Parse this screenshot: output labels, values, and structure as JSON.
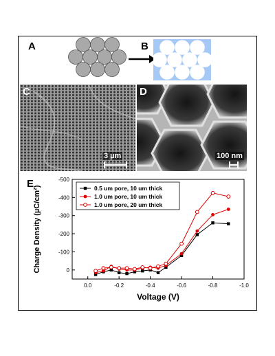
{
  "panels": {
    "a": {
      "letter": "A"
    },
    "b": {
      "letter": "B"
    },
    "c": {
      "letter": "C",
      "scale_bar": "3 µm"
    },
    "d": {
      "letter": "D",
      "scale_bar": "100 nm"
    },
    "e": {
      "letter": "E"
    }
  },
  "colors": {
    "sphere_fill": "#a9a9a9",
    "inverse_fill": "#a6c8f5",
    "series_black": "#000000",
    "series_red": "#e00000"
  },
  "chart_data": {
    "type": "line",
    "xlabel": "Voltage (V)",
    "ylabel": "Charge Density (µC/cm²)",
    "xlim": [
      0.1,
      -1.0
    ],
    "ylim": [
      50,
      -500
    ],
    "xticks": [
      "0.0",
      "-0.2",
      "-0.4",
      "-0.6",
      "-0.8",
      "-1.0"
    ],
    "yticks": [
      "-500",
      "-400",
      "-300",
      "-200",
      "-100",
      "0"
    ],
    "legend_position": "top-left",
    "series": [
      {
        "name": "0.5 um pore, 10 um thick",
        "marker": "filled-square",
        "color": "#000000",
        "x": [
          -0.05,
          -0.1,
          -0.15,
          -0.2,
          -0.25,
          -0.3,
          -0.35,
          -0.4,
          -0.45,
          -0.5,
          -0.6,
          -0.7,
          -0.8,
          -0.9
        ],
        "y": [
          25,
          10,
          0,
          15,
          20,
          10,
          5,
          0,
          15,
          -15,
          -80,
          -195,
          -260,
          -255
        ]
      },
      {
        "name": "1.0 um pore, 10 um thick",
        "marker": "filled-circle",
        "color": "#e00000",
        "x": [
          -0.05,
          -0.1,
          -0.15,
          -0.2,
          -0.25,
          -0.3,
          -0.35,
          -0.4,
          -0.45,
          -0.5,
          -0.6,
          -0.7,
          -0.8,
          -0.9
        ],
        "y": [
          15,
          5,
          -20,
          -5,
          0,
          0,
          -10,
          -15,
          -10,
          -25,
          -90,
          -215,
          -305,
          -335
        ]
      },
      {
        "name": "1.0 um pore, 20 um thick",
        "marker": "open-circle",
        "color": "#e00000",
        "x": [
          -0.05,
          -0.1,
          -0.15,
          -0.2,
          -0.25,
          -0.3,
          -0.35,
          -0.4,
          -0.45,
          -0.5,
          -0.6,
          -0.7,
          -0.8,
          -0.9
        ],
        "y": [
          5,
          -10,
          -15,
          -10,
          -10,
          -5,
          -15,
          -10,
          -20,
          -35,
          -145,
          -320,
          -425,
          -405
        ]
      }
    ]
  }
}
